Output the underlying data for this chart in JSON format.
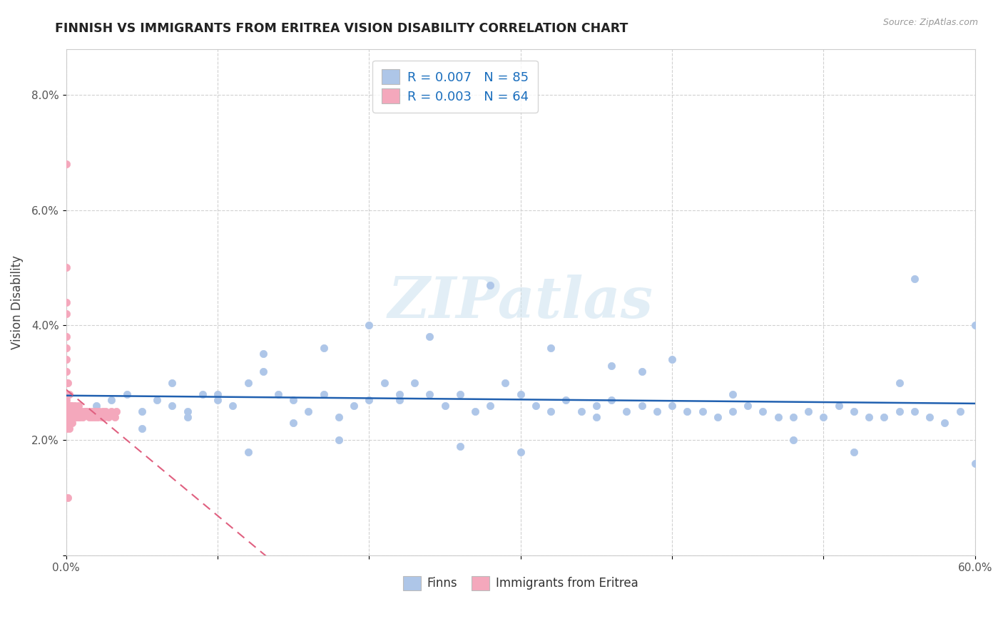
{
  "title": "FINNISH VS IMMIGRANTS FROM ERITREA VISION DISABILITY CORRELATION CHART",
  "source": "Source: ZipAtlas.com",
  "ylabel": "Vision Disability",
  "xlim": [
    0.0,
    0.6
  ],
  "ylim": [
    0.0,
    0.088
  ],
  "yticks": [
    0.0,
    0.02,
    0.04,
    0.06,
    0.08
  ],
  "ytick_labels": [
    "",
    "2.0%",
    "4.0%",
    "6.0%",
    "8.0%"
  ],
  "xticks": [
    0.0,
    0.1,
    0.2,
    0.3,
    0.4,
    0.5,
    0.6
  ],
  "xtick_labels": [
    "0.0%",
    "",
    "",
    "",
    "",
    "",
    "60.0%"
  ],
  "legend_labels": [
    "Finns",
    "Immigrants from Eritrea"
  ],
  "R_finns": "R = 0.007",
  "N_finns": "N = 85",
  "R_eritrea": "R = 0.003",
  "N_eritrea": "N = 64",
  "finns_color": "#AEC6E8",
  "eritrea_color": "#F4A8BC",
  "finns_line_color": "#2060B0",
  "eritrea_line_color": "#E06080",
  "watermark": "ZIPatlas",
  "background_color": "#FFFFFF",
  "grid_color": "#CCCCCC",
  "finns_x": [
    0.02,
    0.03,
    0.04,
    0.05,
    0.06,
    0.07,
    0.08,
    0.09,
    0.1,
    0.11,
    0.12,
    0.13,
    0.14,
    0.15,
    0.16,
    0.17,
    0.18,
    0.19,
    0.2,
    0.21,
    0.22,
    0.23,
    0.24,
    0.25,
    0.26,
    0.27,
    0.28,
    0.29,
    0.3,
    0.31,
    0.32,
    0.33,
    0.34,
    0.35,
    0.36,
    0.37,
    0.38,
    0.39,
    0.4,
    0.41,
    0.42,
    0.43,
    0.44,
    0.45,
    0.46,
    0.47,
    0.48,
    0.49,
    0.5,
    0.51,
    0.52,
    0.53,
    0.54,
    0.55,
    0.56,
    0.57,
    0.58,
    0.59,
    0.07,
    0.1,
    0.13,
    0.17,
    0.2,
    0.24,
    0.28,
    0.32,
    0.36,
    0.4,
    0.44,
    0.48,
    0.52,
    0.56,
    0.6,
    0.55,
    0.6,
    0.05,
    0.08,
    0.12,
    0.15,
    0.18,
    0.22,
    0.26,
    0.3,
    0.35,
    0.38
  ],
  "finns_y": [
    0.026,
    0.027,
    0.028,
    0.025,
    0.027,
    0.026,
    0.025,
    0.028,
    0.027,
    0.026,
    0.03,
    0.032,
    0.028,
    0.027,
    0.025,
    0.028,
    0.024,
    0.026,
    0.027,
    0.03,
    0.028,
    0.03,
    0.028,
    0.026,
    0.028,
    0.025,
    0.026,
    0.03,
    0.028,
    0.026,
    0.025,
    0.027,
    0.025,
    0.026,
    0.027,
    0.025,
    0.026,
    0.025,
    0.026,
    0.025,
    0.025,
    0.024,
    0.025,
    0.026,
    0.025,
    0.024,
    0.024,
    0.025,
    0.024,
    0.026,
    0.025,
    0.024,
    0.024,
    0.025,
    0.025,
    0.024,
    0.023,
    0.025,
    0.03,
    0.028,
    0.035,
    0.036,
    0.04,
    0.038,
    0.047,
    0.036,
    0.033,
    0.034,
    0.028,
    0.02,
    0.018,
    0.048,
    0.04,
    0.03,
    0.016,
    0.022,
    0.024,
    0.018,
    0.023,
    0.02,
    0.027,
    0.019,
    0.018,
    0.024,
    0.032
  ],
  "eritrea_x": [
    0.0,
    0.0,
    0.0,
    0.0,
    0.0,
    0.0,
    0.0,
    0.0,
    0.0,
    0.0,
    0.0,
    0.0,
    0.0,
    0.0,
    0.0,
    0.0,
    0.001,
    0.001,
    0.001,
    0.001,
    0.001,
    0.001,
    0.002,
    0.002,
    0.002,
    0.002,
    0.003,
    0.003,
    0.003,
    0.004,
    0.004,
    0.004,
    0.005,
    0.005,
    0.006,
    0.006,
    0.007,
    0.007,
    0.008,
    0.008,
    0.009,
    0.009,
    0.01,
    0.011,
    0.012,
    0.013,
    0.014,
    0.015,
    0.016,
    0.017,
    0.018,
    0.019,
    0.02,
    0.021,
    0.022,
    0.023,
    0.024,
    0.025,
    0.026,
    0.028,
    0.03,
    0.032,
    0.033,
    0.001
  ],
  "eritrea_y": [
    0.068,
    0.05,
    0.044,
    0.042,
    0.038,
    0.036,
    0.034,
    0.032,
    0.03,
    0.028,
    0.027,
    0.026,
    0.025,
    0.024,
    0.023,
    0.022,
    0.03,
    0.028,
    0.026,
    0.025,
    0.024,
    0.023,
    0.028,
    0.026,
    0.024,
    0.022,
    0.026,
    0.025,
    0.023,
    0.026,
    0.025,
    0.023,
    0.025,
    0.024,
    0.026,
    0.024,
    0.025,
    0.024,
    0.026,
    0.024,
    0.025,
    0.024,
    0.025,
    0.024,
    0.025,
    0.025,
    0.025,
    0.024,
    0.025,
    0.024,
    0.025,
    0.024,
    0.025,
    0.024,
    0.025,
    0.024,
    0.025,
    0.024,
    0.025,
    0.024,
    0.025,
    0.024,
    0.025,
    0.01
  ]
}
